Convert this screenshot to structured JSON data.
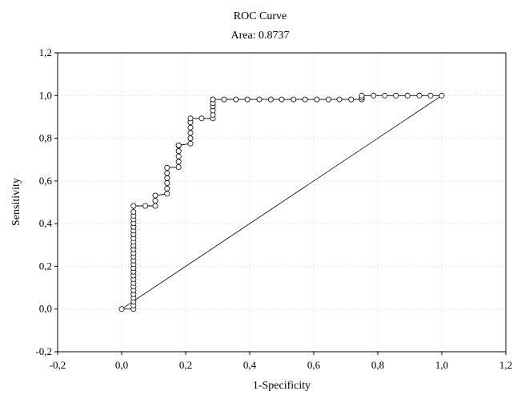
{
  "chart_data": {
    "type": "line",
    "title": "ROC Curve",
    "subtitle": "Area: 0.8737",
    "xlabel": "1-Specificity",
    "ylabel": "Sensitivity",
    "xlim": [
      -0.2,
      1.2
    ],
    "ylim": [
      -0.2,
      1.2
    ],
    "xticks": [
      "-0,2",
      "0,0",
      "0,2",
      "0,4",
      "0,6",
      "0,8",
      "1,0",
      "1,2"
    ],
    "yticks": [
      "1,2",
      "1,0",
      "0,8",
      "0,6",
      "0,4",
      "0,2",
      "0,0",
      "-0,2"
    ],
    "xtick_values": [
      -0.2,
      0.0,
      0.2,
      0.4,
      0.6,
      0.8,
      1.0,
      1.2
    ],
    "ytick_values": [
      1.2,
      1.0,
      0.8,
      0.6,
      0.4,
      0.2,
      0.0,
      -0.2
    ],
    "grid": true,
    "series": [
      {
        "kind": "roc_curve",
        "marker": "open-circle",
        "x": [
          0.0,
          0.037,
          0.037,
          0.037,
          0.037,
          0.037,
          0.037,
          0.037,
          0.037,
          0.037,
          0.037,
          0.037,
          0.037,
          0.037,
          0.037,
          0.037,
          0.037,
          0.037,
          0.037,
          0.037,
          0.037,
          0.037,
          0.037,
          0.037,
          0.037,
          0.037,
          0.037,
          0.037,
          0.037,
          0.074,
          0.105,
          0.105,
          0.105,
          0.142,
          0.142,
          0.142,
          0.142,
          0.142,
          0.142,
          0.178,
          0.178,
          0.178,
          0.178,
          0.178,
          0.178,
          0.215,
          0.215,
          0.215,
          0.215,
          0.215,
          0.215,
          0.25,
          0.285,
          0.285,
          0.285,
          0.285,
          0.285,
          0.285,
          0.32,
          0.357,
          0.393,
          0.43,
          0.466,
          0.5,
          0.537,
          0.573,
          0.61,
          0.646,
          0.68,
          0.717,
          0.75,
          0.75,
          0.75,
          0.787,
          0.822,
          0.857,
          0.893,
          0.93,
          0.965,
          1.0
        ],
        "y": [
          0.0,
          0.0,
          0.017,
          0.035,
          0.052,
          0.07,
          0.087,
          0.105,
          0.122,
          0.14,
          0.157,
          0.175,
          0.192,
          0.21,
          0.227,
          0.245,
          0.262,
          0.28,
          0.297,
          0.315,
          0.332,
          0.35,
          0.367,
          0.385,
          0.402,
          0.42,
          0.437,
          0.455,
          0.483,
          0.483,
          0.483,
          0.507,
          0.532,
          0.54,
          0.565,
          0.59,
          0.613,
          0.637,
          0.662,
          0.665,
          0.69,
          0.715,
          0.74,
          0.765,
          0.767,
          0.775,
          0.8,
          0.825,
          0.85,
          0.875,
          0.893,
          0.893,
          0.893,
          0.91,
          0.93,
          0.95,
          0.965,
          0.982,
          0.982,
          0.982,
          0.982,
          0.982,
          0.982,
          0.982,
          0.982,
          0.982,
          0.982,
          0.982,
          0.982,
          0.982,
          0.982,
          0.99,
          1.0,
          1.0,
          1.0,
          1.0,
          1.0,
          1.0,
          1.0,
          1.0
        ]
      },
      {
        "kind": "reference_diagonal",
        "x": [
          0.0,
          1.0
        ],
        "y": [
          0.0,
          1.0
        ]
      }
    ]
  }
}
